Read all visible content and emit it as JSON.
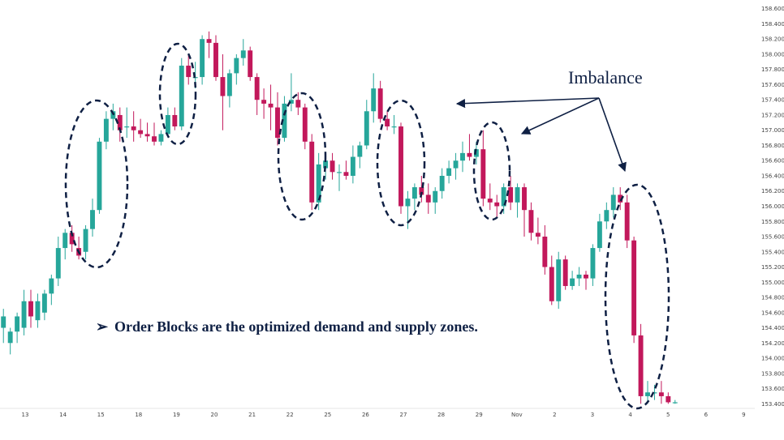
{
  "chart_data": {
    "type": "candlestick",
    "y_ticks": [
      "158.600",
      "158.400",
      "158.200",
      "158.000",
      "157.800",
      "157.600",
      "157.400",
      "157.200",
      "157.000",
      "156.800",
      "156.600",
      "156.400",
      "156.200",
      "156.000",
      "155.800",
      "155.600",
      "155.400",
      "155.200",
      "155.000",
      "154.800",
      "154.600",
      "154.400",
      "154.200",
      "154.000",
      "153.800",
      "153.600",
      "153.400"
    ],
    "ylim": [
      153.35,
      158.65
    ],
    "x_ticks": [
      "13",
      "14",
      "15",
      "18",
      "19",
      "20",
      "21",
      "22",
      "25",
      "26",
      "27",
      "28",
      "29",
      "Nov",
      "2",
      "3",
      "4",
      "5",
      "6",
      "9"
    ],
    "candles": [
      {
        "o": 154.4,
        "h": 154.65,
        "l": 154.2,
        "c": 154.55
      },
      {
        "o": 154.2,
        "h": 154.4,
        "l": 154.05,
        "c": 154.35
      },
      {
        "o": 154.35,
        "h": 154.6,
        "l": 154.2,
        "c": 154.55
      },
      {
        "o": 154.4,
        "h": 154.9,
        "l": 154.3,
        "c": 154.75
      },
      {
        "o": 154.75,
        "h": 154.9,
        "l": 154.4,
        "c": 154.55
      },
      {
        "o": 154.5,
        "h": 154.85,
        "l": 154.4,
        "c": 154.75
      },
      {
        "o": 154.6,
        "h": 154.9,
        "l": 154.5,
        "c": 154.85
      },
      {
        "o": 154.85,
        "h": 155.1,
        "l": 154.7,
        "c": 155.05
      },
      {
        "o": 155.05,
        "h": 155.6,
        "l": 154.95,
        "c": 155.45
      },
      {
        "o": 155.45,
        "h": 155.7,
        "l": 155.3,
        "c": 155.65
      },
      {
        "o": 155.65,
        "h": 155.75,
        "l": 155.4,
        "c": 155.5
      },
      {
        "o": 155.45,
        "h": 155.6,
        "l": 155.3,
        "c": 155.35
      },
      {
        "o": 155.4,
        "h": 155.75,
        "l": 155.3,
        "c": 155.7
      },
      {
        "o": 155.7,
        "h": 156.1,
        "l": 155.6,
        "c": 155.95
      },
      {
        "o": 155.95,
        "h": 156.9,
        "l": 155.9,
        "c": 156.85
      },
      {
        "o": 156.85,
        "h": 157.25,
        "l": 156.75,
        "c": 157.15
      },
      {
        "o": 157.15,
        "h": 157.35,
        "l": 157.0,
        "c": 157.25
      },
      {
        "o": 157.2,
        "h": 157.3,
        "l": 156.85,
        "c": 157.0
      },
      {
        "o": 157.05,
        "h": 157.3,
        "l": 156.9,
        "c": 157.05
      },
      {
        "o": 157.05,
        "h": 157.25,
        "l": 156.85,
        "c": 157.0
      },
      {
        "o": 157.0,
        "h": 157.15,
        "l": 156.9,
        "c": 156.95
      },
      {
        "o": 156.95,
        "h": 157.1,
        "l": 156.85,
        "c": 156.92
      },
      {
        "o": 156.92,
        "h": 157.1,
        "l": 156.8,
        "c": 156.85
      },
      {
        "o": 156.85,
        "h": 157.0,
        "l": 156.8,
        "c": 156.95
      },
      {
        "o": 156.95,
        "h": 157.3,
        "l": 156.9,
        "c": 157.2
      },
      {
        "o": 157.2,
        "h": 157.3,
        "l": 157.0,
        "c": 157.05
      },
      {
        "o": 157.05,
        "h": 157.95,
        "l": 157.0,
        "c": 157.85
      },
      {
        "o": 157.85,
        "h": 158.0,
        "l": 157.6,
        "c": 157.7
      },
      {
        "o": 157.7,
        "h": 157.9,
        "l": 157.55,
        "c": 157.7
      },
      {
        "o": 157.7,
        "h": 158.25,
        "l": 157.6,
        "c": 158.2
      },
      {
        "o": 158.2,
        "h": 158.3,
        "l": 157.95,
        "c": 158.15
      },
      {
        "o": 158.15,
        "h": 158.25,
        "l": 157.65,
        "c": 157.7
      },
      {
        "o": 157.7,
        "h": 158.0,
        "l": 157.0,
        "c": 157.45
      },
      {
        "o": 157.45,
        "h": 157.8,
        "l": 157.3,
        "c": 157.75
      },
      {
        "o": 157.75,
        "h": 158.0,
        "l": 157.6,
        "c": 157.95
      },
      {
        "o": 157.95,
        "h": 158.2,
        "l": 157.85,
        "c": 158.05
      },
      {
        "o": 158.05,
        "h": 158.1,
        "l": 157.65,
        "c": 157.7
      },
      {
        "o": 157.7,
        "h": 157.75,
        "l": 157.2,
        "c": 157.4
      },
      {
        "o": 157.4,
        "h": 157.55,
        "l": 157.15,
        "c": 157.35
      },
      {
        "o": 157.35,
        "h": 157.6,
        "l": 157.0,
        "c": 157.3
      },
      {
        "o": 157.3,
        "h": 157.5,
        "l": 156.8,
        "c": 156.9
      },
      {
        "o": 156.9,
        "h": 157.45,
        "l": 156.85,
        "c": 157.35
      },
      {
        "o": 157.35,
        "h": 157.75,
        "l": 157.25,
        "c": 157.4
      },
      {
        "o": 157.4,
        "h": 157.5,
        "l": 157.2,
        "c": 157.3
      },
      {
        "o": 157.3,
        "h": 157.35,
        "l": 156.75,
        "c": 156.85
      },
      {
        "o": 156.85,
        "h": 156.95,
        "l": 155.95,
        "c": 156.05
      },
      {
        "o": 156.05,
        "h": 156.7,
        "l": 155.95,
        "c": 156.55
      },
      {
        "o": 156.5,
        "h": 156.7,
        "l": 156.35,
        "c": 156.6
      },
      {
        "o": 156.6,
        "h": 156.7,
        "l": 156.35,
        "c": 156.45
      },
      {
        "o": 156.45,
        "h": 156.55,
        "l": 156.2,
        "c": 156.45
      },
      {
        "o": 156.45,
        "h": 156.6,
        "l": 156.35,
        "c": 156.4
      },
      {
        "o": 156.4,
        "h": 156.8,
        "l": 156.3,
        "c": 156.65
      },
      {
        "o": 156.65,
        "h": 156.85,
        "l": 156.5,
        "c": 156.8
      },
      {
        "o": 156.8,
        "h": 157.4,
        "l": 156.75,
        "c": 157.25
      },
      {
        "o": 157.25,
        "h": 157.75,
        "l": 157.1,
        "c": 157.55
      },
      {
        "o": 157.55,
        "h": 157.65,
        "l": 157.1,
        "c": 157.15
      },
      {
        "o": 157.15,
        "h": 157.25,
        "l": 157.0,
        "c": 157.05
      },
      {
        "o": 157.05,
        "h": 157.2,
        "l": 156.95,
        "c": 157.05
      },
      {
        "o": 157.05,
        "h": 157.1,
        "l": 155.9,
        "c": 156.0
      },
      {
        "o": 156.0,
        "h": 156.2,
        "l": 155.7,
        "c": 156.1
      },
      {
        "o": 156.1,
        "h": 156.3,
        "l": 155.95,
        "c": 156.25
      },
      {
        "o": 156.25,
        "h": 156.4,
        "l": 156.05,
        "c": 156.15
      },
      {
        "o": 156.15,
        "h": 156.3,
        "l": 155.9,
        "c": 156.05
      },
      {
        "o": 156.05,
        "h": 156.25,
        "l": 155.9,
        "c": 156.2
      },
      {
        "o": 156.2,
        "h": 156.5,
        "l": 156.1,
        "c": 156.4
      },
      {
        "o": 156.4,
        "h": 156.6,
        "l": 156.3,
        "c": 156.5
      },
      {
        "o": 156.5,
        "h": 156.7,
        "l": 156.35,
        "c": 156.6
      },
      {
        "o": 156.6,
        "h": 156.85,
        "l": 156.45,
        "c": 156.7
      },
      {
        "o": 156.7,
        "h": 156.95,
        "l": 156.6,
        "c": 156.65
      },
      {
        "o": 156.65,
        "h": 156.85,
        "l": 156.55,
        "c": 156.75
      },
      {
        "o": 156.75,
        "h": 157.0,
        "l": 156.0,
        "c": 156.1
      },
      {
        "o": 156.1,
        "h": 156.3,
        "l": 155.95,
        "c": 156.05
      },
      {
        "o": 156.05,
        "h": 156.15,
        "l": 155.85,
        "c": 156.0
      },
      {
        "o": 156.0,
        "h": 156.3,
        "l": 155.9,
        "c": 156.25
      },
      {
        "o": 156.25,
        "h": 156.4,
        "l": 155.95,
        "c": 156.05
      },
      {
        "o": 156.05,
        "h": 156.3,
        "l": 155.85,
        "c": 156.25
      },
      {
        "o": 156.25,
        "h": 156.3,
        "l": 155.6,
        "c": 155.95
      },
      {
        "o": 155.95,
        "h": 156.05,
        "l": 155.55,
        "c": 155.65
      },
      {
        "o": 155.65,
        "h": 155.85,
        "l": 155.5,
        "c": 155.6
      },
      {
        "o": 155.6,
        "h": 155.75,
        "l": 155.1,
        "c": 155.2
      },
      {
        "o": 155.2,
        "h": 155.35,
        "l": 154.7,
        "c": 154.75
      },
      {
        "o": 154.75,
        "h": 155.4,
        "l": 154.65,
        "c": 155.3
      },
      {
        "o": 155.3,
        "h": 155.35,
        "l": 154.9,
        "c": 154.95
      },
      {
        "o": 154.95,
        "h": 155.15,
        "l": 154.9,
        "c": 155.05
      },
      {
        "o": 155.05,
        "h": 155.2,
        "l": 154.95,
        "c": 155.1
      },
      {
        "o": 155.1,
        "h": 155.15,
        "l": 154.9,
        "c": 155.05
      },
      {
        "o": 155.05,
        "h": 155.5,
        "l": 154.95,
        "c": 155.45
      },
      {
        "o": 155.45,
        "h": 155.9,
        "l": 155.4,
        "c": 155.8
      },
      {
        "o": 155.8,
        "h": 156.05,
        "l": 155.7,
        "c": 155.95
      },
      {
        "o": 155.95,
        "h": 156.25,
        "l": 155.85,
        "c": 156.15
      },
      {
        "o": 156.15,
        "h": 156.25,
        "l": 155.95,
        "c": 156.05
      },
      {
        "o": 156.05,
        "h": 156.15,
        "l": 155.45,
        "c": 155.55
      },
      {
        "o": 155.55,
        "h": 155.6,
        "l": 154.2,
        "c": 154.3
      },
      {
        "o": 154.3,
        "h": 154.45,
        "l": 153.4,
        "c": 153.5
      },
      {
        "o": 153.5,
        "h": 153.7,
        "l": 153.4,
        "c": 153.55
      },
      {
        "o": 153.55,
        "h": 153.65,
        "l": 153.45,
        "c": 153.55
      },
      {
        "o": 153.55,
        "h": 153.7,
        "l": 153.4,
        "c": 153.5
      },
      {
        "o": 153.5,
        "h": 153.55,
        "l": 153.4,
        "c": 153.42
      },
      {
        "o": 153.42,
        "h": 153.45,
        "l": 153.4,
        "c": 153.42
      }
    ],
    "up_color": "#26a69a",
    "down_color": "#c2185b",
    "annotation_color": "#0f2044",
    "annotation": "Imbalance",
    "caption_bullet": "➢",
    "caption": "Order Blocks are the optimized demand and supply zones.",
    "grid": false,
    "y_axis_side": "right"
  }
}
